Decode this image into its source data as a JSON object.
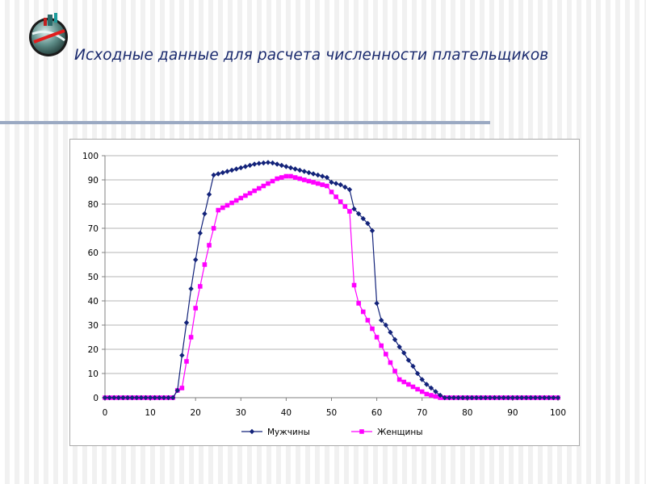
{
  "slide": {
    "title": "Исходные данные для расчета численности плательщиков"
  },
  "colors": {
    "title": "#1a2a6e",
    "rule": "#9aa9c2",
    "men": "#13237a",
    "women": "#ff00ff",
    "grid": "#b5b5b5"
  },
  "chart_data": {
    "type": "line",
    "title": "",
    "xlabel": "",
    "ylabel": "",
    "xlim": [
      0,
      100
    ],
    "ylim": [
      0,
      100
    ],
    "x_ticks": [
      "0",
      "10",
      "20",
      "30",
      "40",
      "50",
      "60",
      "70",
      "80",
      "90",
      "100"
    ],
    "y_ticks": [
      "0",
      "10",
      "20",
      "30",
      "40",
      "50",
      "60",
      "70",
      "80",
      "90",
      "100"
    ],
    "grid": "horizontal",
    "legend_position": "bottom",
    "x": [
      0,
      1,
      2,
      3,
      4,
      5,
      6,
      7,
      8,
      9,
      10,
      11,
      12,
      13,
      14,
      15,
      16,
      17,
      18,
      19,
      20,
      21,
      22,
      23,
      24,
      25,
      26,
      27,
      28,
      29,
      30,
      31,
      32,
      33,
      34,
      35,
      36,
      37,
      38,
      39,
      40,
      41,
      42,
      43,
      44,
      45,
      46,
      47,
      48,
      49,
      50,
      51,
      52,
      53,
      54,
      55,
      56,
      57,
      58,
      59,
      60,
      61,
      62,
      63,
      64,
      65,
      66,
      67,
      68,
      69,
      70,
      71,
      72,
      73,
      74,
      75,
      76,
      77,
      78,
      79,
      80,
      81,
      82,
      83,
      84,
      85,
      86,
      87,
      88,
      89,
      90,
      91,
      92,
      93,
      94,
      95,
      96,
      97,
      98,
      99,
      100
    ],
    "series": [
      {
        "name": "Мужчины",
        "marker": "diamond",
        "values": [
          0,
          0,
          0,
          0,
          0,
          0,
          0,
          0,
          0,
          0,
          0,
          0,
          0,
          0,
          0,
          0,
          3,
          17.5,
          31,
          45,
          57,
          68,
          76,
          84,
          92,
          92.5,
          93,
          93.5,
          94,
          94.5,
          95,
          95.5,
          96,
          96.5,
          96.8,
          97,
          97.2,
          97,
          96.5,
          96,
          95.5,
          95,
          94.5,
          94,
          93.5,
          93,
          92.5,
          92,
          91.5,
          91,
          89,
          88.5,
          88,
          87,
          86,
          78,
          76,
          74,
          72,
          69,
          39,
          32,
          30,
          27,
          24,
          21,
          18.5,
          15.5,
          13,
          10,
          7.5,
          5.5,
          4,
          2.5,
          1,
          0,
          0,
          0,
          0,
          0,
          0,
          0,
          0,
          0,
          0,
          0,
          0,
          0,
          0,
          0,
          0,
          0,
          0,
          0,
          0,
          0,
          0,
          0,
          0,
          0,
          0
        ]
      },
      {
        "name": "Женщины",
        "marker": "square",
        "values": [
          0,
          0,
          0,
          0,
          0,
          0,
          0,
          0,
          0,
          0,
          0,
          0,
          0,
          0,
          0,
          0,
          3,
          4,
          15,
          25,
          37,
          46,
          55,
          63,
          70,
          77.5,
          78.5,
          79.5,
          80.5,
          81.5,
          82.5,
          83.5,
          84.5,
          85.5,
          86.5,
          87.5,
          88.5,
          89.5,
          90.5,
          91,
          91.5,
          91.5,
          91,
          90.5,
          90,
          89.5,
          89,
          88.5,
          88,
          87.5,
          85,
          83,
          81,
          79,
          77,
          46.5,
          39,
          35.5,
          32,
          28.5,
          25,
          21.5,
          18,
          14.5,
          11,
          7.5,
          6.5,
          5.5,
          4.5,
          3.5,
          2.5,
          1.5,
          1,
          0.5,
          0,
          0,
          0,
          0,
          0,
          0,
          0,
          0,
          0,
          0,
          0,
          0,
          0,
          0,
          0,
          0,
          0,
          0,
          0,
          0,
          0,
          0,
          0,
          0,
          0,
          0,
          0
        ]
      }
    ]
  }
}
